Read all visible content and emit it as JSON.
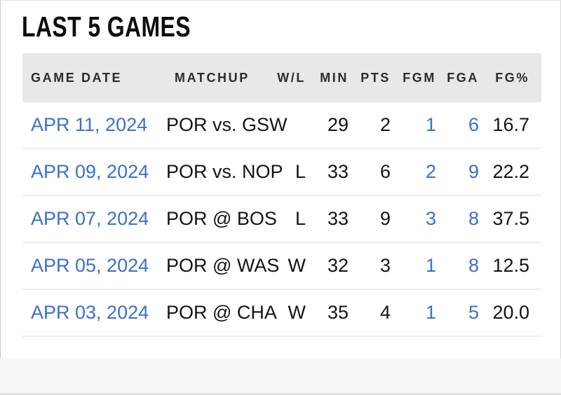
{
  "page": {
    "title": "LAST 5 GAMES"
  },
  "colors": {
    "link_blue": "#3b70c9",
    "header_bg": "#e7e8ea",
    "text_dark": "#141414",
    "divider": "#ededef",
    "footer_bg": "#f6f6f7"
  },
  "table": {
    "columns": [
      {
        "key": "date",
        "label": "GAME DATE"
      },
      {
        "key": "matchup",
        "label": "MATCHUP"
      },
      {
        "key": "wl",
        "label": "W/L"
      },
      {
        "key": "min",
        "label": "MIN"
      },
      {
        "key": "pts",
        "label": "PTS"
      },
      {
        "key": "fgm",
        "label": "FGM"
      },
      {
        "key": "fga",
        "label": "FGA"
      },
      {
        "key": "fgpct",
        "label": "FG%"
      }
    ],
    "rows": [
      {
        "date": "APR 11, 2024",
        "matchup": "POR vs. GSW",
        "wl": "",
        "min": "29",
        "pts": "2",
        "fgm": "1",
        "fga": "6",
        "fgpct": "16.7"
      },
      {
        "date": "APR 09, 2024",
        "matchup": "POR vs. NOP",
        "wl": "L",
        "min": "33",
        "pts": "6",
        "fgm": "2",
        "fga": "9",
        "fgpct": "22.2"
      },
      {
        "date": "APR 07, 2024",
        "matchup": "POR @ BOS",
        "wl": "L",
        "min": "33",
        "pts": "9",
        "fgm": "3",
        "fga": "8",
        "fgpct": "37.5"
      },
      {
        "date": "APR 05, 2024",
        "matchup": "POR @ WAS",
        "wl": "W",
        "min": "32",
        "pts": "3",
        "fgm": "1",
        "fga": "8",
        "fgpct": "12.5"
      },
      {
        "date": "APR 03, 2024",
        "matchup": "POR @ CHA",
        "wl": "W",
        "min": "35",
        "pts": "4",
        "fgm": "1",
        "fga": "5",
        "fgpct": "20.0"
      }
    ]
  }
}
